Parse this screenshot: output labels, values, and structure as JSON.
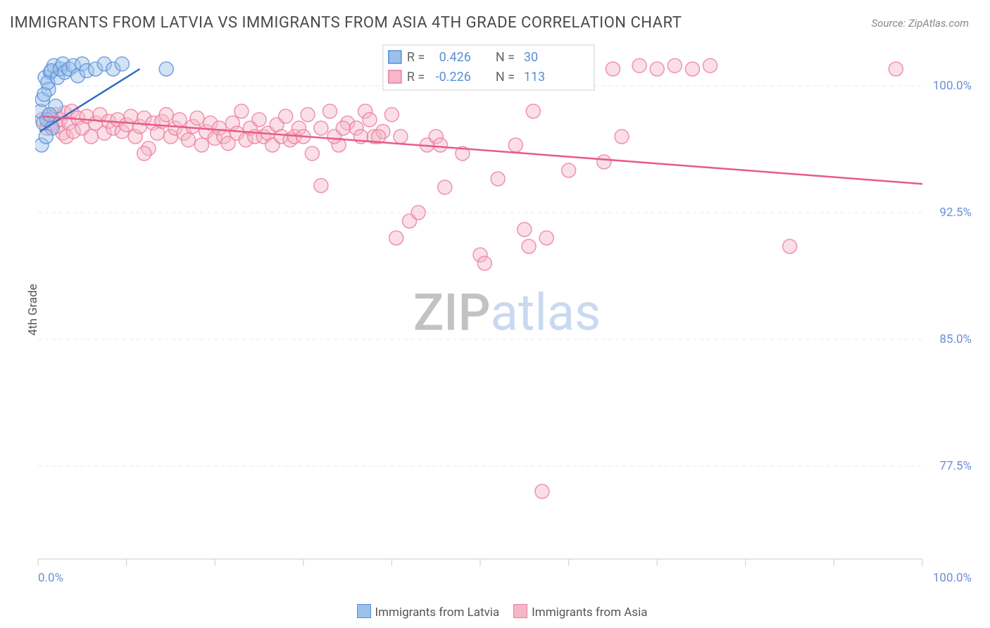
{
  "header": {
    "title": "IMMIGRANTS FROM LATVIA VS IMMIGRANTS FROM ASIA 4TH GRADE CORRELATION CHART",
    "source_label": "Source:",
    "source_value": "ZipAtlas.com"
  },
  "y_axis": {
    "label": "4th Grade"
  },
  "watermark": {
    "part1": "ZIP",
    "part2": "atlas"
  },
  "chart": {
    "type": "scatter",
    "plot_bg": "#ffffff",
    "grid_color": "#e8e8e8",
    "axis_line_color": "#cccccc",
    "xlim": [
      0,
      100
    ],
    "ylim": [
      72,
      102
    ],
    "x_ticks": [
      0,
      10,
      20,
      30,
      40,
      50,
      60,
      70,
      80,
      90,
      100
    ],
    "x_tick_labels_shown": {
      "0": "0.0%",
      "100": "100.0%"
    },
    "y_ticks": [
      77.5,
      85.0,
      92.5,
      100.0
    ],
    "y_tick_labels": [
      "77.5%",
      "85.0%",
      "92.5%",
      "100.0%"
    ],
    "marker_radius": 10,
    "marker_opacity": 0.45,
    "series": [
      {
        "name": "Immigrants from Latvia",
        "color_fill": "#9bc0ec",
        "color_stroke": "#5a8fd6",
        "line_color": "#2e6cc4",
        "trend": {
          "x0": 0.2,
          "y0": 97.3,
          "x1": 11.5,
          "y1": 101.0
        },
        "R_label": "R =",
        "R_value": "0.426",
        "N_label": "N =",
        "N_value": "30",
        "points": [
          [
            0.3,
            98.5
          ],
          [
            0.5,
            99.2
          ],
          [
            0.6,
            97.8
          ],
          [
            0.8,
            100.5
          ],
          [
            1.0,
            98.0
          ],
          [
            1.2,
            99.8
          ],
          [
            1.4,
            100.8
          ],
          [
            1.6,
            97.5
          ],
          [
            1.8,
            101.2
          ],
          [
            2.0,
            98.8
          ],
          [
            0.4,
            96.5
          ],
          [
            0.7,
            99.5
          ],
          [
            1.1,
            100.2
          ],
          [
            1.3,
            98.3
          ],
          [
            1.5,
            100.9
          ],
          [
            0.9,
            97.0
          ],
          [
            2.2,
            100.5
          ],
          [
            2.5,
            101.0
          ],
          [
            2.8,
            101.3
          ],
          [
            3.0,
            100.8
          ],
          [
            3.5,
            101.0
          ],
          [
            4.0,
            101.2
          ],
          [
            4.5,
            100.6
          ],
          [
            5.0,
            101.3
          ],
          [
            5.5,
            100.9
          ],
          [
            6.5,
            101.0
          ],
          [
            7.5,
            101.3
          ],
          [
            8.5,
            101.0
          ],
          [
            9.5,
            101.3
          ],
          [
            14.5,
            101.0
          ]
        ]
      },
      {
        "name": "Immigrants from Asia",
        "color_fill": "#f5b8c8",
        "color_stroke": "#ec7ba0",
        "line_color": "#e85a8a",
        "trend": {
          "x0": 0.5,
          "y0": 98.2,
          "x1": 100,
          "y1": 94.2
        },
        "R_label": "R =",
        "R_value": "-0.226",
        "N_label": "N =",
        "N_value": "113",
        "points": [
          [
            0.5,
            98.0
          ],
          [
            1.0,
            97.5
          ],
          [
            1.2,
            98.2
          ],
          [
            1.5,
            97.8
          ],
          [
            2.0,
            98.3
          ],
          [
            2.2,
            97.6
          ],
          [
            2.5,
            98.0
          ],
          [
            2.8,
            97.2
          ],
          [
            3.0,
            98.4
          ],
          [
            3.2,
            97.0
          ],
          [
            3.5,
            97.8
          ],
          [
            3.8,
            98.5
          ],
          [
            4.0,
            97.3
          ],
          [
            4.5,
            98.1
          ],
          [
            5.0,
            97.5
          ],
          [
            5.5,
            98.2
          ],
          [
            6.0,
            97.0
          ],
          [
            6.5,
            97.8
          ],
          [
            7.0,
            98.3
          ],
          [
            7.5,
            97.2
          ],
          [
            8.0,
            97.9
          ],
          [
            8.5,
            97.5
          ],
          [
            9.0,
            98.0
          ],
          [
            9.5,
            97.3
          ],
          [
            10.0,
            97.7
          ],
          [
            10.5,
            98.2
          ],
          [
            11.0,
            97.0
          ],
          [
            11.5,
            97.6
          ],
          [
            12.0,
            98.1
          ],
          [
            12.5,
            96.3
          ],
          [
            13.0,
            97.8
          ],
          [
            13.5,
            97.2
          ],
          [
            14.0,
            97.9
          ],
          [
            14.5,
            98.3
          ],
          [
            15.0,
            97.0
          ],
          [
            15.5,
            97.5
          ],
          [
            16.0,
            98.0
          ],
          [
            16.5,
            97.2
          ],
          [
            17.0,
            96.8
          ],
          [
            17.5,
            97.6
          ],
          [
            18.0,
            98.1
          ],
          [
            18.5,
            96.5
          ],
          [
            19.0,
            97.3
          ],
          [
            19.5,
            97.8
          ],
          [
            20.0,
            96.9
          ],
          [
            20.5,
            97.5
          ],
          [
            21.0,
            97.0
          ],
          [
            21.5,
            96.6
          ],
          [
            22.0,
            97.8
          ],
          [
            22.5,
            97.2
          ],
          [
            23.0,
            98.5
          ],
          [
            23.5,
            96.8
          ],
          [
            24.0,
            97.5
          ],
          [
            24.5,
            97.0
          ],
          [
            25.0,
            98.0
          ],
          [
            25.5,
            97.0
          ],
          [
            26.0,
            97.2
          ],
          [
            26.5,
            96.5
          ],
          [
            27.0,
            97.7
          ],
          [
            27.5,
            97.0
          ],
          [
            28.0,
            98.2
          ],
          [
            28.5,
            96.8
          ],
          [
            29.0,
            97.0
          ],
          [
            29.5,
            97.5
          ],
          [
            30.0,
            97.0
          ],
          [
            30.5,
            98.3
          ],
          [
            31.0,
            96.0
          ],
          [
            32.0,
            97.5
          ],
          [
            33.0,
            98.5
          ],
          [
            34.0,
            96.5
          ],
          [
            35.0,
            97.8
          ],
          [
            36.0,
            97.5
          ],
          [
            37.0,
            98.5
          ],
          [
            38.0,
            97.0
          ],
          [
            39.0,
            97.3
          ],
          [
            40.0,
            98.3
          ],
          [
            32.0,
            94.1
          ],
          [
            41.0,
            97.0
          ],
          [
            42.0,
            92.0
          ],
          [
            43.0,
            92.5
          ],
          [
            44.0,
            96.5
          ],
          [
            45.0,
            97.0
          ],
          [
            46.0,
            94.0
          ],
          [
            48.0,
            96.0
          ],
          [
            50.0,
            90.0
          ],
          [
            52.0,
            94.5
          ],
          [
            54.0,
            96.5
          ],
          [
            55.0,
            91.5
          ],
          [
            56.0,
            98.5
          ],
          [
            57.0,
            76.0
          ],
          [
            58.0,
            101.2
          ],
          [
            60.0,
            95.0
          ],
          [
            62.0,
            101.2
          ],
          [
            64.0,
            95.5
          ],
          [
            65.0,
            101.0
          ],
          [
            66.0,
            97.0
          ],
          [
            68.0,
            101.2
          ],
          [
            70.0,
            101.0
          ],
          [
            72.0,
            101.2
          ],
          [
            74.0,
            101.0
          ],
          [
            76.0,
            101.2
          ],
          [
            85.0,
            90.5
          ],
          [
            97.0,
            101.0
          ],
          [
            40.5,
            91.0
          ],
          [
            45.5,
            96.5
          ],
          [
            57.5,
            91.0
          ],
          [
            12.0,
            96.0
          ],
          [
            50.5,
            89.5
          ],
          [
            55.5,
            90.5
          ],
          [
            33.5,
            97.0
          ],
          [
            34.5,
            97.5
          ],
          [
            36.5,
            97.0
          ],
          [
            37.5,
            98.0
          ],
          [
            38.5,
            97.0
          ]
        ]
      }
    ]
  },
  "legend_box": {
    "bg": "#ffffff",
    "border": "#d0d0d0",
    "value_color": "#5a8fd6",
    "label_color": "#666666"
  },
  "legend_bottom": {
    "items": [
      {
        "label": "Immigrants from Latvia",
        "fill": "#9bc0ec",
        "stroke": "#5a8fd6"
      },
      {
        "label": "Immigrants from Asia",
        "fill": "#f5b8c8",
        "stroke": "#ec7ba0"
      }
    ]
  }
}
